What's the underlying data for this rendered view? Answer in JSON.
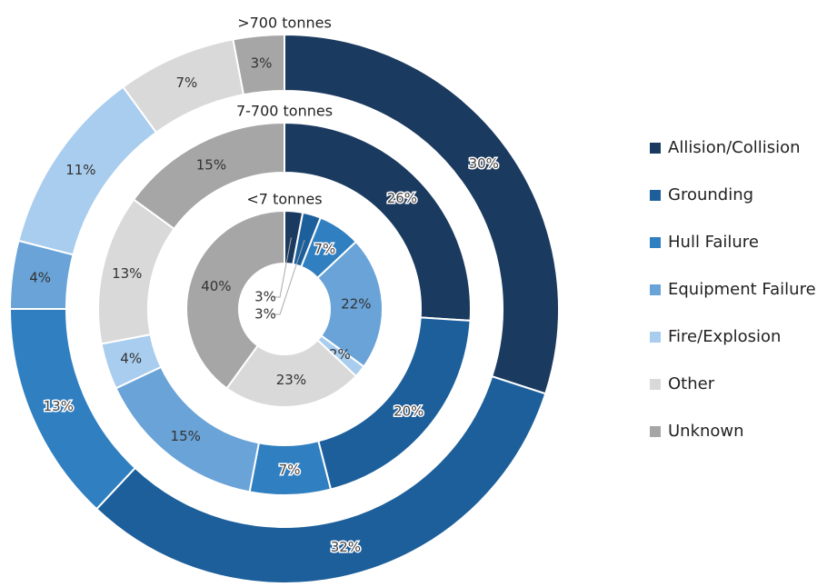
{
  "chart_data": {
    "type": "donut",
    "categories": [
      "Allision/Collision",
      "Grounding",
      "Hull Failure",
      "Equipment Failure",
      "Fire/Explosion",
      "Other",
      "Unknown"
    ],
    "colors": [
      "#1b3a5f",
      "#1c5f9b",
      "#2f7fc1",
      "#69a3d8",
      "#a9cdee",
      "#d9d9d9",
      "#a6a6a6"
    ],
    "series": [
      {
        "name": ">700 tonnes",
        "values": [
          30,
          32,
          13,
          4,
          11,
          7,
          3
        ],
        "value_labels": [
          "30%",
          "32%",
          "13%",
          "4%",
          "11%",
          "7%",
          "3%"
        ]
      },
      {
        "name": "7-700 tonnes",
        "values": [
          26,
          20,
          7,
          15,
          4,
          13,
          15
        ],
        "value_labels": [
          "26%",
          "20%",
          "7%",
          "15%",
          "4%",
          "13%",
          "15%"
        ]
      },
      {
        "name": "<7 tonnes",
        "values": [
          3,
          3,
          7,
          22,
          2,
          23,
          40
        ],
        "value_labels": [
          "3%",
          "3%",
          "7%",
          "22%",
          "2%",
          "23%",
          "40%"
        ]
      }
    ],
    "legend": "right"
  }
}
